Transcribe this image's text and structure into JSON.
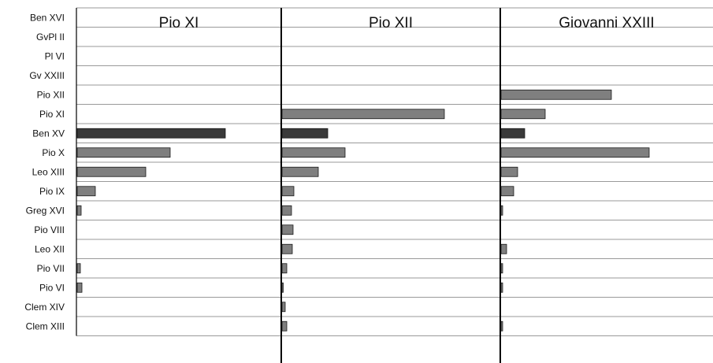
{
  "chart_data": {
    "type": "bar",
    "orientation": "horizontal",
    "categories": [
      "Ben XVI",
      "GvPl II",
      "Pl VI",
      "Gv XXIII",
      "Pio XII",
      "Pio XI",
      "Ben XV",
      "Pio X",
      "Leo XIII",
      "Pio IX",
      "Greg XVI",
      "Pio VIII",
      "Leo XII",
      "Pio VII",
      "Pio VI",
      "Clem XIV",
      "Clem XIII"
    ],
    "panels": [
      {
        "title": "Pio XI",
        "values": [
          0,
          0,
          0,
          0,
          0,
          0,
          188,
          118,
          87,
          23,
          5,
          0,
          0,
          4,
          6,
          0,
          0
        ],
        "highlight": "Ben XV"
      },
      {
        "title": "Pio XII",
        "values": [
          0,
          0,
          0,
          0,
          0,
          206,
          58,
          80,
          46,
          15,
          12,
          14,
          13,
          6,
          1,
          4,
          6
        ],
        "highlight": "Ben XV"
      },
      {
        "title": "Giovanni XXIII",
        "values": [
          0,
          0,
          0,
          0,
          140,
          56,
          30,
          188,
          21,
          16,
          2,
          0,
          7,
          2,
          2,
          0,
          2
        ],
        "highlight": "Ben XV"
      }
    ],
    "colors": {
      "bar": "#7f7f7f",
      "highlight_bar": "#3a3a3a",
      "bar_outline": "#1a1a1a",
      "grid": "#9a9a9a",
      "divider": "#000000"
    },
    "grid": true,
    "legend": "none"
  }
}
